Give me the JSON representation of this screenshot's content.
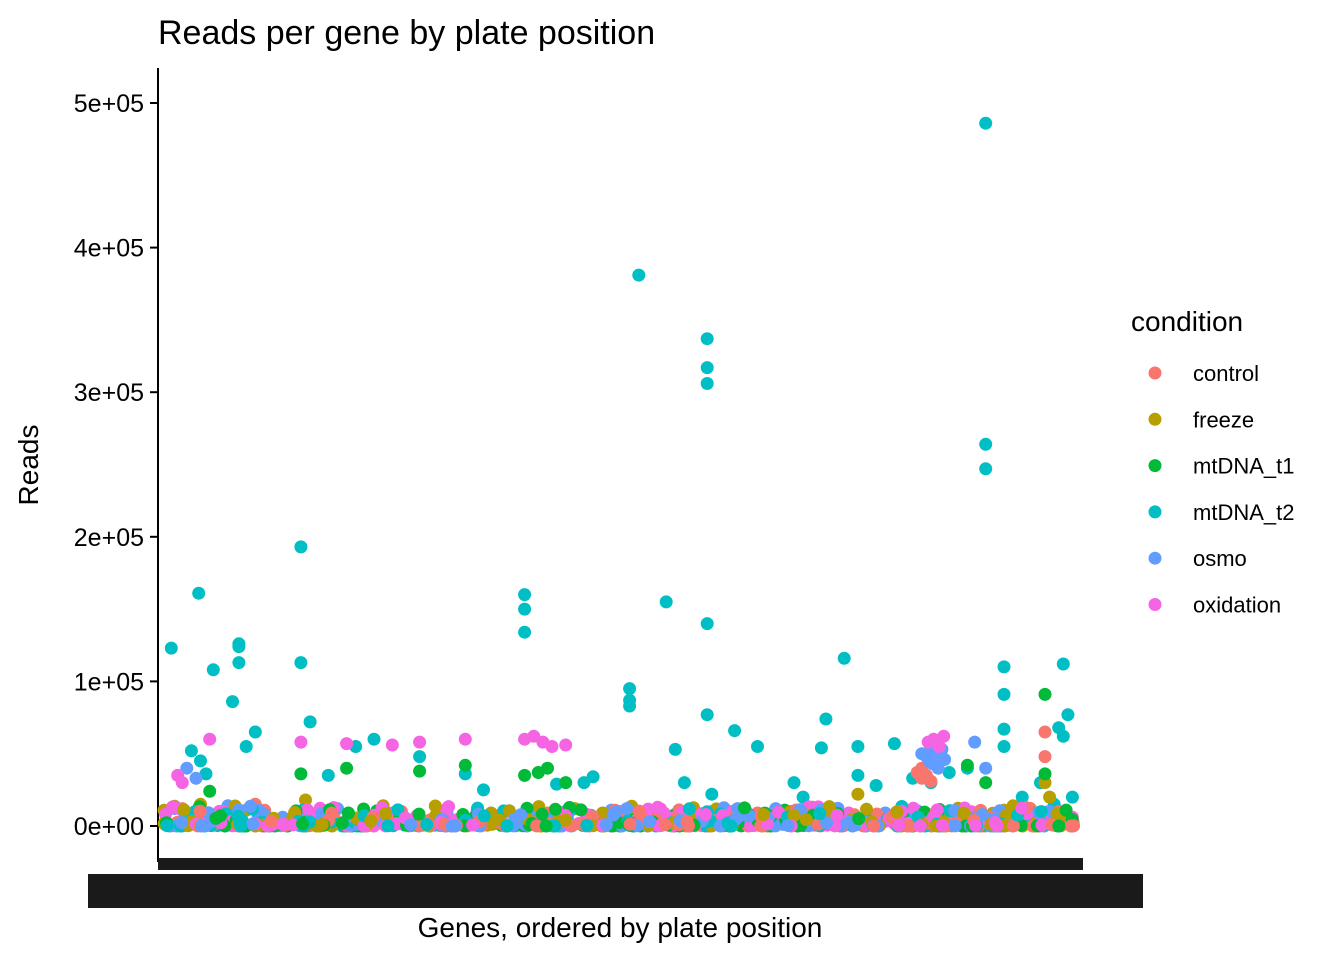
{
  "chart_data": {
    "type": "scatter",
    "title": "Reads per gene by plate position",
    "xlabel": "Genes, ordered by plate position",
    "ylabel": "Reads",
    "xlim": [
      0,
      1000
    ],
    "ylim": [
      0,
      500000
    ],
    "ytick_labels": [
      "0e+00",
      "1e+05",
      "2e+05",
      "3e+05",
      "4e+05",
      "5e+05"
    ],
    "ytick_values": [
      0,
      100000,
      200000,
      300000,
      400000,
      500000
    ],
    "grid": false,
    "legend": {
      "title": "condition",
      "position": "right",
      "entries": [
        {
          "name": "control",
          "color": "#F8766D"
        },
        {
          "name": "freeze",
          "color": "#B79F00"
        },
        {
          "name": "mtDNA_t1",
          "color": "#00BA38"
        },
        {
          "name": "mtDNA_t2",
          "color": "#00BFC4"
        },
        {
          "name": "osmo",
          "color": "#619CFF"
        },
        {
          "name": "oxidation",
          "color": "#F564E3"
        }
      ]
    },
    "series": [
      {
        "name": "mtDNA_t2",
        "color": "#00BFC4",
        "points": [
          [
            8,
            123000
          ],
          [
            38,
            161000
          ],
          [
            54,
            108000
          ],
          [
            82,
            124000
          ],
          [
            82,
            113000
          ],
          [
            82,
            126000
          ],
          [
            75,
            86000
          ],
          [
            46,
            36000
          ],
          [
            30,
            52000
          ],
          [
            150,
            193000
          ],
          [
            150,
            113000
          ],
          [
            160,
            72000
          ],
          [
            395,
            160000
          ],
          [
            395,
            150000
          ],
          [
            395,
            134000
          ],
          [
            520,
            381000
          ],
          [
            510,
            95000
          ],
          [
            510,
            83000
          ],
          [
            510,
            87000
          ],
          [
            550,
            155000
          ],
          [
            595,
            337000
          ],
          [
            595,
            317000
          ],
          [
            595,
            306000
          ],
          [
            595,
            140000
          ],
          [
            595,
            77000
          ],
          [
            625,
            66000
          ],
          [
            745,
            116000
          ],
          [
            725,
            74000
          ],
          [
            900,
            486000
          ],
          [
            900,
            264000
          ],
          [
            900,
            247000
          ],
          [
            920,
            110000
          ],
          [
            920,
            91000
          ],
          [
            920,
            67000
          ],
          [
            920,
            55000
          ],
          [
            985,
            112000
          ],
          [
            990,
            77000
          ],
          [
            985,
            62000
          ],
          [
            980,
            68000
          ],
          [
            650,
            55000
          ],
          [
            720,
            54000
          ],
          [
            760,
            55000
          ],
          [
            800,
            57000
          ],
          [
            840,
            30000
          ],
          [
            880,
            40000
          ],
          [
            40,
            45000
          ],
          [
            90,
            55000
          ],
          [
            100,
            65000
          ],
          [
            180,
            35000
          ],
          [
            210,
            55000
          ],
          [
            230,
            60000
          ],
          [
            280,
            48000
          ],
          [
            330,
            36000
          ],
          [
            350,
            25000
          ],
          [
            430,
            29000
          ],
          [
            460,
            30000
          ],
          [
            470,
            34000
          ],
          [
            560,
            53000
          ],
          [
            570,
            30000
          ],
          [
            600,
            22000
          ],
          [
            690,
            30000
          ],
          [
            700,
            20000
          ],
          [
            760,
            35000
          ],
          [
            780,
            28000
          ],
          [
            820,
            33000
          ],
          [
            860,
            37000
          ],
          [
            940,
            20000
          ],
          [
            960,
            30000
          ],
          [
            975,
            15000
          ],
          [
            995,
            20000
          ]
        ]
      },
      {
        "name": "control",
        "color": "#F8766D",
        "points": [
          [
            965,
            65000
          ],
          [
            965,
            48000
          ],
          [
            830,
            40000
          ],
          [
            830,
            33000
          ],
          [
            835,
            35000
          ],
          [
            840,
            31000
          ],
          [
            825,
            37000
          ],
          [
            20,
            12000
          ],
          [
            60,
            8000
          ],
          [
            120,
            5000
          ],
          [
            200,
            3000
          ],
          [
            260,
            10000
          ],
          [
            340,
            6000
          ],
          [
            420,
            9000
          ],
          [
            480,
            4000
          ],
          [
            540,
            7000
          ],
          [
            620,
            5000
          ],
          [
            700,
            8000
          ],
          [
            780,
            3000
          ],
          [
            860,
            6000
          ],
          [
            940,
            4000
          ],
          [
            980,
            10000
          ],
          [
            100,
            15000
          ],
          [
            310,
            12000
          ],
          [
            650,
            9000
          ]
        ]
      },
      {
        "name": "freeze",
        "color": "#B79F00",
        "points": [
          [
            965,
            30000
          ],
          [
            970,
            20000
          ],
          [
            30,
            7000
          ],
          [
            90,
            11000
          ],
          [
            170,
            6000
          ],
          [
            240,
            14000
          ],
          [
            300,
            4000
          ],
          [
            370,
            8000
          ],
          [
            450,
            12000
          ],
          [
            510,
            5000
          ],
          [
            580,
            9000
          ],
          [
            640,
            3000
          ],
          [
            710,
            13000
          ],
          [
            760,
            22000
          ],
          [
            800,
            7000
          ],
          [
            870,
            5000
          ],
          [
            920,
            11000
          ],
          [
            950,
            8000
          ],
          [
            40,
            15000
          ],
          [
            155,
            18000
          ]
        ]
      },
      {
        "name": "mtDNA_t1",
        "color": "#00BA38",
        "points": [
          [
            965,
            91000
          ],
          [
            965,
            36000
          ],
          [
            840,
            55000
          ],
          [
            900,
            30000
          ],
          [
            880,
            42000
          ],
          [
            50,
            24000
          ],
          [
            150,
            36000
          ],
          [
            200,
            40000
          ],
          [
            280,
            38000
          ],
          [
            330,
            42000
          ],
          [
            395,
            35000
          ],
          [
            410,
            37000
          ],
          [
            420,
            40000
          ],
          [
            440,
            30000
          ],
          [
            50,
            5000
          ],
          [
            110,
            9000
          ],
          [
            180,
            2000
          ],
          [
            260,
            6000
          ],
          [
            350,
            4000
          ],
          [
            440,
            10000
          ],
          [
            500,
            3000
          ],
          [
            560,
            8000
          ],
          [
            620,
            5000
          ],
          [
            680,
            11000
          ],
          [
            740,
            2000
          ],
          [
            810,
            7000
          ],
          [
            870,
            4000
          ],
          [
            930,
            9000
          ],
          [
            990,
            3000
          ],
          [
            640,
            4000
          ]
        ]
      },
      {
        "name": "osmo",
        "color": "#619CFF",
        "points": [
          [
            840,
            52000
          ],
          [
            845,
            55000
          ],
          [
            850,
            50000
          ],
          [
            835,
            48000
          ],
          [
            838,
            45000
          ],
          [
            842,
            43000
          ],
          [
            848,
            40000
          ],
          [
            852,
            53000
          ],
          [
            855,
            46000
          ],
          [
            830,
            50000
          ],
          [
            888,
            58000
          ],
          [
            900,
            40000
          ],
          [
            25,
            40000
          ],
          [
            35,
            33000
          ],
          [
            70,
            14000
          ],
          [
            130,
            6000
          ],
          [
            190,
            12000
          ],
          [
            250,
            5000
          ],
          [
            310,
            9000
          ],
          [
            370,
            3000
          ],
          [
            430,
            8000
          ],
          [
            490,
            11000
          ],
          [
            550,
            4000
          ],
          [
            610,
            7000
          ],
          [
            670,
            12000
          ],
          [
            730,
            5000
          ],
          [
            790,
            9000
          ],
          [
            850,
            3000
          ],
          [
            910,
            6000
          ],
          [
            970,
            10000
          ]
        ]
      },
      {
        "name": "oxidation",
        "color": "#F564E3",
        "points": [
          [
            837,
            58000
          ],
          [
            843,
            60000
          ],
          [
            849,
            55000
          ],
          [
            854,
            62000
          ],
          [
            50,
            60000
          ],
          [
            150,
            58000
          ],
          [
            200,
            57000
          ],
          [
            250,
            56000
          ],
          [
            280,
            58000
          ],
          [
            330,
            60000
          ],
          [
            395,
            60000
          ],
          [
            405,
            62000
          ],
          [
            415,
            58000
          ],
          [
            425,
            55000
          ],
          [
            440,
            56000
          ],
          [
            15,
            35000
          ],
          [
            20,
            30000
          ],
          [
            65,
            10000
          ],
          [
            140,
            4000
          ],
          [
            220,
            9000
          ],
          [
            290,
            3000
          ],
          [
            360,
            8000
          ],
          [
            430,
            6000
          ],
          [
            500,
            10000
          ],
          [
            570,
            4000
          ],
          [
            630,
            8000
          ],
          [
            690,
            3000
          ],
          [
            750,
            9000
          ],
          [
            810,
            5000
          ],
          [
            880,
            4000
          ],
          [
            950,
            7000
          ],
          [
            995,
            6000
          ],
          [
            600,
            10000
          ]
        ]
      }
    ]
  }
}
